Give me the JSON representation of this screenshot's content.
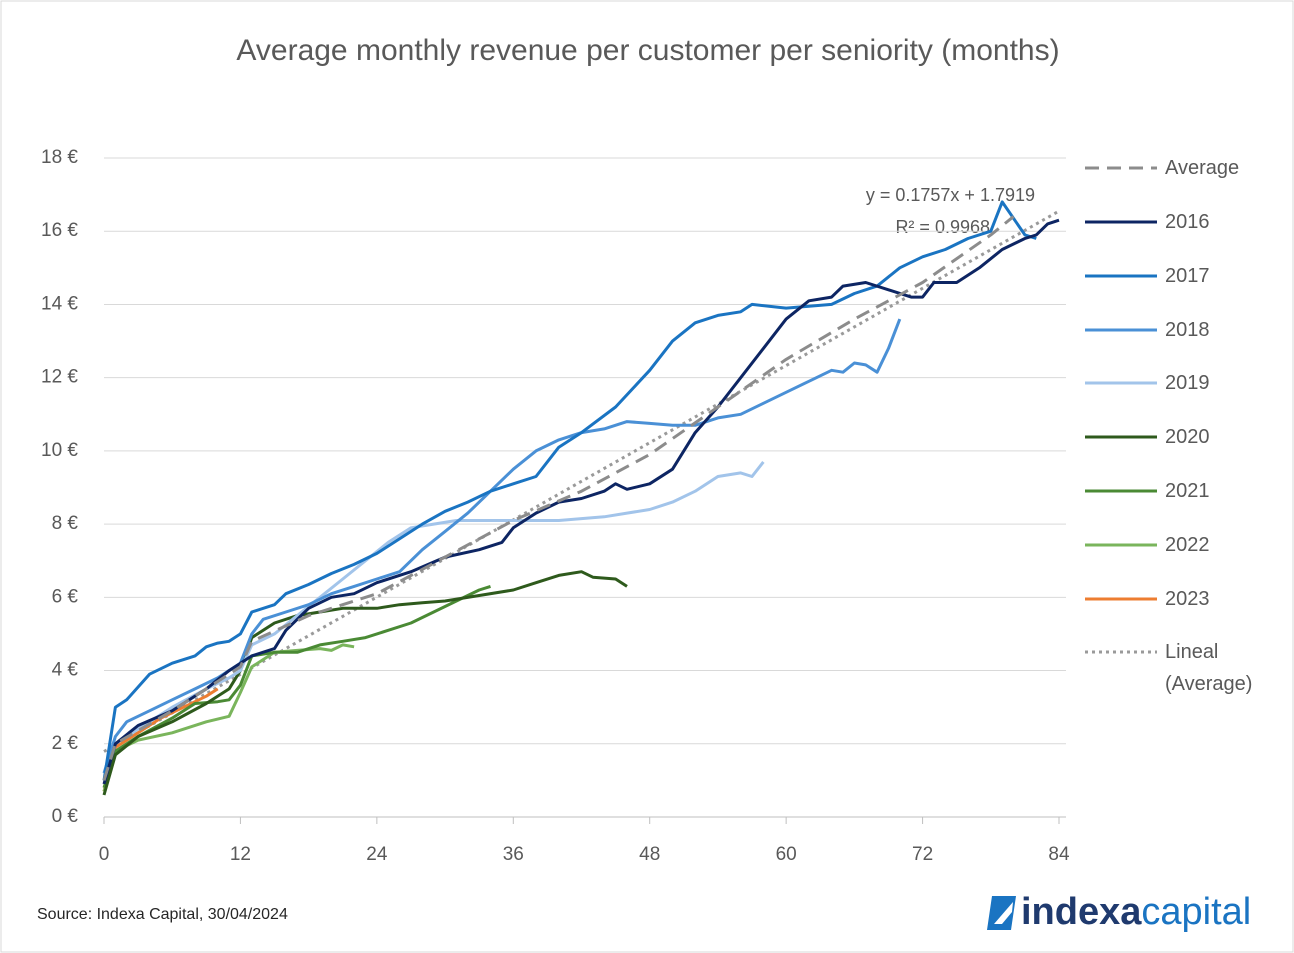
{
  "chart_data": {
    "type": "line",
    "title": "Average monthly revenue per customer per seniority (months)",
    "xlim": [
      0,
      84
    ],
    "xticks": [
      0,
      12,
      24,
      36,
      48,
      60,
      72,
      84
    ],
    "ylim": [
      0,
      18
    ],
    "yticks": [
      {
        "value": 0,
        "label": "0 €"
      },
      {
        "value": 2,
        "label": "2 €"
      },
      {
        "value": 4,
        "label": "4 €"
      },
      {
        "value": 6,
        "label": "6 €"
      },
      {
        "value": 8,
        "label": "8 €"
      },
      {
        "value": 10,
        "label": "10 €"
      },
      {
        "value": 12,
        "label": "12 €"
      },
      {
        "value": 14,
        "label": "14 €"
      },
      {
        "value": 16,
        "label": "16 €"
      },
      {
        "value": 18,
        "label": "18 €"
      }
    ],
    "grid": true,
    "legend": "right",
    "annotations": [
      "y = 0.1757x + 1.7919",
      "R² = 0.9968"
    ],
    "source": "Source: Indexa Capital, 30/04/2024",
    "logo": [
      "indexa",
      "capital"
    ],
    "series": [
      {
        "name": "Average",
        "color": "#8c8c8c",
        "style": "dashed",
        "x": [
          0,
          1,
          6,
          12,
          13,
          18,
          24,
          30,
          36,
          42,
          48,
          54,
          60,
          66,
          72,
          78,
          80
        ],
        "values": [
          1.0,
          2.0,
          2.9,
          4.1,
          4.8,
          5.5,
          6.1,
          7.1,
          8.1,
          8.9,
          9.9,
          11.2,
          12.5,
          13.6,
          14.6,
          15.9,
          16.4
        ]
      },
      {
        "name": "2016",
        "color": "#0d2563",
        "style": "solid",
        "x": [
          0,
          1,
          3,
          6,
          9,
          11,
          12,
          13,
          15,
          16,
          18,
          20,
          22,
          24,
          27,
          30,
          33,
          35,
          36,
          38,
          40,
          42,
          44,
          45,
          46,
          48,
          50,
          52,
          54,
          56,
          58,
          60,
          62,
          64,
          65,
          67,
          69,
          71,
          72,
          73,
          75,
          77,
          79,
          81,
          82,
          83,
          84
        ],
        "values": [
          0.9,
          2.0,
          2.5,
          2.9,
          3.5,
          4.0,
          4.2,
          4.4,
          4.6,
          5.1,
          5.7,
          6.0,
          6.1,
          6.4,
          6.7,
          7.1,
          7.3,
          7.5,
          7.9,
          8.3,
          8.6,
          8.7,
          8.9,
          9.1,
          8.95,
          9.1,
          9.5,
          10.5,
          11.2,
          12.0,
          12.8,
          13.6,
          14.1,
          14.2,
          14.5,
          14.6,
          14.4,
          14.2,
          14.2,
          14.6,
          14.6,
          15.0,
          15.5,
          15.8,
          15.9,
          16.2,
          16.3
        ]
      },
      {
        "name": "2017",
        "color": "#1a74c2",
        "style": "solid",
        "x": [
          0,
          1,
          2,
          4,
          6,
          8,
          9,
          10,
          11,
          12,
          13,
          15,
          16,
          18,
          20,
          22,
          24,
          26,
          28,
          30,
          32,
          34,
          36,
          38,
          40,
          42,
          45,
          48,
          50,
          52,
          54,
          56,
          57,
          60,
          62,
          64,
          66,
          68,
          70,
          72,
          74,
          76,
          78,
          79,
          81,
          82
        ],
        "values": [
          1.0,
          3.0,
          3.2,
          3.9,
          4.2,
          4.4,
          4.65,
          4.75,
          4.8,
          5.0,
          5.6,
          5.8,
          6.1,
          6.35,
          6.65,
          6.9,
          7.2,
          7.6,
          8.0,
          8.35,
          8.6,
          8.9,
          9.1,
          9.3,
          10.1,
          10.5,
          11.2,
          12.2,
          13.0,
          13.5,
          13.7,
          13.8,
          14.0,
          13.9,
          13.95,
          14.0,
          14.3,
          14.5,
          15.0,
          15.3,
          15.5,
          15.8,
          16.0,
          16.8,
          15.9,
          15.8
        ]
      },
      {
        "name": "2018",
        "color": "#4a90d6",
        "style": "solid",
        "x": [
          0,
          1,
          2,
          4,
          6,
          8,
          10,
          12,
          13,
          14,
          16,
          18,
          20,
          22,
          24,
          26,
          28,
          30,
          32,
          34,
          36,
          38,
          40,
          42,
          44,
          46,
          48,
          50,
          52,
          54,
          56,
          58,
          60,
          62,
          64,
          65,
          66,
          67,
          68,
          69,
          70
        ],
        "values": [
          1.2,
          2.2,
          2.6,
          2.9,
          3.2,
          3.5,
          3.8,
          4.2,
          5.0,
          5.4,
          5.6,
          5.8,
          6.1,
          6.3,
          6.5,
          6.7,
          7.3,
          7.8,
          8.3,
          8.9,
          9.5,
          10.0,
          10.3,
          10.5,
          10.6,
          10.8,
          10.75,
          10.7,
          10.7,
          10.9,
          11.0,
          11.3,
          11.6,
          11.9,
          12.2,
          12.15,
          12.4,
          12.35,
          12.15,
          12.8,
          13.6
        ]
      },
      {
        "name": "2019",
        "color": "#a2c4ea",
        "style": "solid",
        "x": [
          0,
          1,
          3,
          6,
          9,
          11,
          12,
          13,
          15,
          17,
          19,
          21,
          23,
          25,
          27,
          29,
          31,
          34,
          37,
          40,
          42,
          44,
          46,
          48,
          50,
          52,
          54,
          56,
          57,
          58
        ],
        "values": [
          1.0,
          2.0,
          2.4,
          3.0,
          3.5,
          3.8,
          4.0,
          4.7,
          5.0,
          5.5,
          6.0,
          6.5,
          7.0,
          7.5,
          7.9,
          8.0,
          8.1,
          8.1,
          8.1,
          8.1,
          8.15,
          8.2,
          8.3,
          8.4,
          8.6,
          8.9,
          9.3,
          9.4,
          9.3,
          9.7
        ]
      },
      {
        "name": "2020",
        "color": "#2e5a1c",
        "style": "solid",
        "x": [
          0,
          1,
          3,
          6,
          9,
          11,
          12,
          13,
          15,
          17,
          19,
          21,
          24,
          26,
          28,
          30,
          33,
          36,
          38,
          40,
          42,
          43,
          45,
          46
        ],
        "values": [
          0.6,
          1.7,
          2.2,
          2.6,
          3.1,
          3.5,
          4.0,
          4.9,
          5.3,
          5.5,
          5.6,
          5.7,
          5.7,
          5.8,
          5.85,
          5.9,
          6.05,
          6.2,
          6.4,
          6.6,
          6.7,
          6.55,
          6.5,
          6.3
        ]
      },
      {
        "name": "2021",
        "color": "#4a8a34",
        "style": "solid",
        "x": [
          0,
          1,
          3,
          6,
          8,
          10,
          11,
          12,
          13,
          15,
          17,
          19,
          21,
          23,
          25,
          27,
          29,
          31,
          33,
          34
        ],
        "values": [
          0.8,
          1.8,
          2.2,
          2.7,
          3.1,
          3.15,
          3.2,
          3.6,
          4.4,
          4.5,
          4.5,
          4.7,
          4.8,
          4.9,
          5.1,
          5.3,
          5.6,
          5.9,
          6.2,
          6.3
        ]
      },
      {
        "name": "2022",
        "color": "#7ab55c",
        "style": "solid",
        "x": [
          0,
          1,
          3,
          6,
          9,
          11,
          12,
          13,
          15,
          17,
          19,
          20,
          21,
          22
        ],
        "values": [
          0.7,
          1.8,
          2.1,
          2.3,
          2.6,
          2.75,
          3.4,
          4.1,
          4.5,
          4.55,
          4.6,
          4.55,
          4.7,
          4.65
        ]
      },
      {
        "name": "2023",
        "color": "#ed7d31",
        "style": "solid",
        "x": [
          0,
          1,
          3,
          5,
          7,
          9,
          10
        ],
        "values": [
          0.7,
          1.9,
          2.3,
          2.7,
          3.0,
          3.3,
          3.5
        ]
      },
      {
        "name": "Lineal (Average)",
        "color": "#9a9a9a",
        "style": "dotted",
        "x": [
          0,
          84
        ],
        "values": [
          1.79,
          16.55
        ]
      }
    ]
  }
}
